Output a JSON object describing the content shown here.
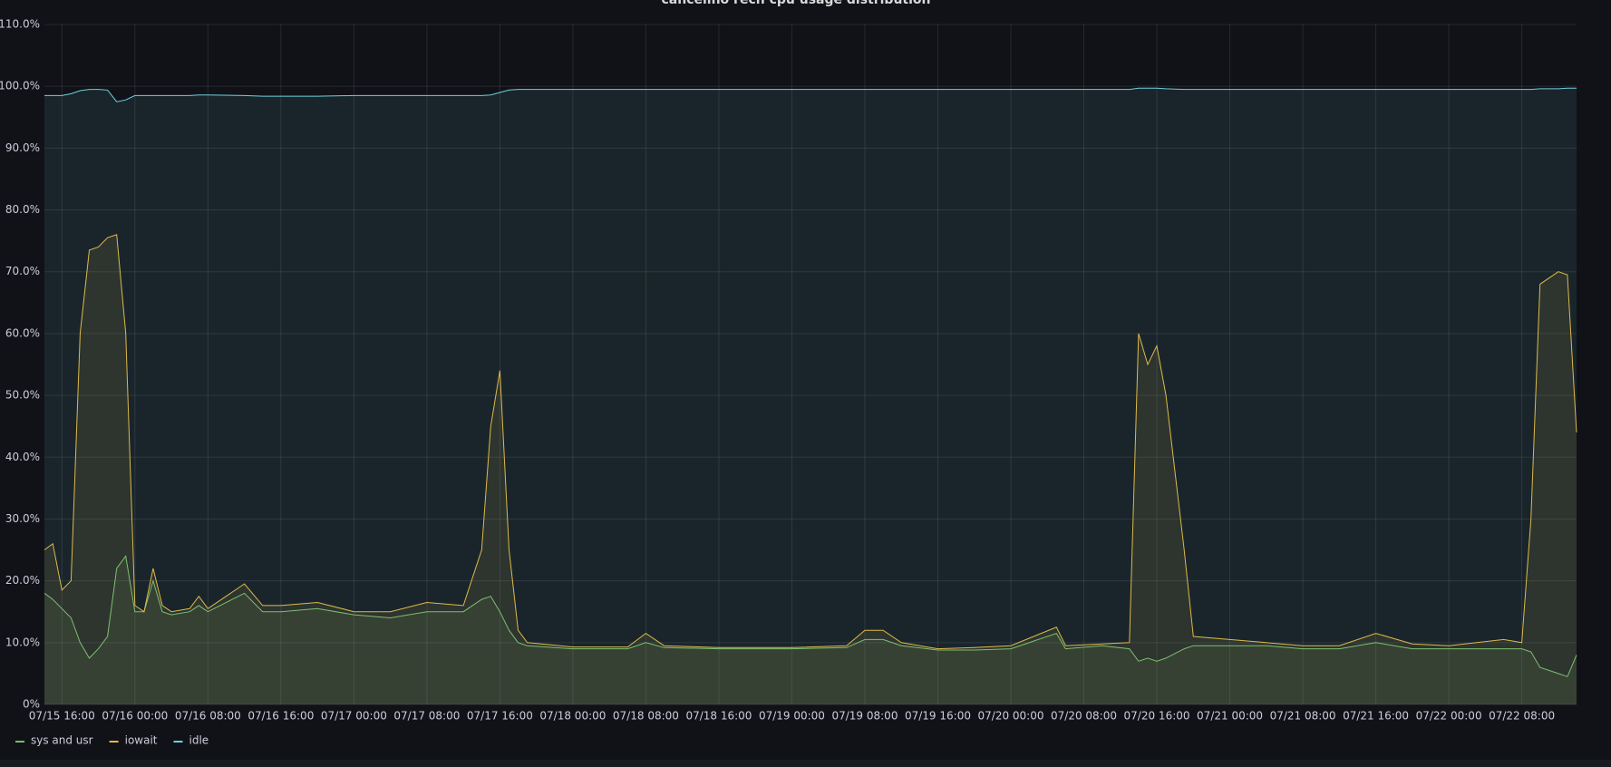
{
  "chart_data": {
    "type": "line",
    "title": "cancelino rech cpu usage distribution",
    "x": [
      "07/15 14:05",
      "07/15 15:00",
      "07/15 16:00",
      "07/15 17:00",
      "07/15 18:00",
      "07/15 19:00",
      "07/15 20:00",
      "07/15 21:00",
      "07/15 22:00",
      "07/15 23:00",
      "07/16 00:00",
      "07/16 01:00",
      "07/16 02:00",
      "07/16 03:00",
      "07/16 04:00",
      "07/16 06:00",
      "07/16 07:00",
      "07/16 08:00",
      "07/16 12:00",
      "07/16 14:00",
      "07/16 16:00",
      "07/16 20:00",
      "07/17 00:00",
      "07/17 04:00",
      "07/17 08:00",
      "07/17 12:00",
      "07/17 14:00",
      "07/17 15:00",
      "07/17 16:00",
      "07/17 17:00",
      "07/17 18:00",
      "07/17 19:00",
      "07/18 00:00",
      "07/18 06:00",
      "07/18 08:00",
      "07/18 10:00",
      "07/18 16:00",
      "07/19 00:00",
      "07/19 06:00",
      "07/19 08:00",
      "07/19 10:00",
      "07/19 12:00",
      "07/19 16:00",
      "07/19 20:00",
      "07/20 00:00",
      "07/20 05:00",
      "07/20 06:00",
      "07/20 10:00",
      "07/20 13:00",
      "07/20 14:00",
      "07/20 15:00",
      "07/20 16:00",
      "07/20 17:00",
      "07/20 19:00",
      "07/20 20:00",
      "07/21 00:00",
      "07/21 04:00",
      "07/21 08:00",
      "07/21 12:00",
      "07/21 16:00",
      "07/21 20:00",
      "07/22 00:00",
      "07/22 06:00",
      "07/22 08:00",
      "07/22 09:00",
      "07/22 10:00",
      "07/22 12:00",
      "07/22 13:00",
      "07/22 14:00"
    ],
    "series": [
      {
        "name": "sys and usr",
        "color": "#73bf69",
        "values": [
          18,
          17,
          15.5,
          14,
          10,
          7.5,
          9,
          11,
          22,
          24,
          15,
          15,
          20,
          15,
          14.5,
          15,
          16,
          15,
          18,
          15,
          15,
          15.5,
          14.5,
          14,
          15,
          15,
          17,
          17.5,
          15,
          12,
          10,
          9.5,
          9,
          9,
          10,
          9.2,
          9,
          9,
          9.2,
          10.5,
          10.5,
          9.5,
          8.8,
          8.8,
          9,
          11.5,
          9,
          9.5,
          9,
          7,
          7.5,
          7,
          7.5,
          9,
          9.5,
          9.5,
          9.5,
          9,
          9,
          10,
          9,
          9,
          9,
          9,
          8.5,
          6,
          5,
          4.5,
          8
        ]
      },
      {
        "name": "iowait",
        "color": "#eab839",
        "values": [
          25,
          26,
          18.5,
          20,
          60,
          73.5,
          74,
          75.5,
          76,
          60,
          16,
          15,
          22,
          16,
          15,
          15.5,
          17.5,
          15.5,
          19.5,
          16,
          16,
          16.5,
          15,
          15,
          16.5,
          16,
          25,
          45,
          54,
          25,
          12,
          10,
          9.3,
          9.3,
          11.5,
          9.5,
          9.2,
          9.2,
          9.5,
          12,
          12,
          10,
          9,
          9.2,
          9.5,
          12.5,
          9.5,
          9.8,
          10,
          60,
          55,
          58,
          50,
          25,
          11,
          10.5,
          10,
          9.5,
          9.5,
          11.5,
          9.8,
          9.5,
          10.5,
          10,
          30,
          68,
          70,
          69.5,
          44
        ]
      },
      {
        "name": "idle",
        "color": "#6ed0e0",
        "values": [
          98.5,
          98.5,
          98.5,
          98.8,
          99.3,
          99.5,
          99.5,
          99.4,
          97.5,
          97.8,
          98.5,
          98.5,
          98.5,
          98.5,
          98.5,
          98.5,
          98.6,
          98.6,
          98.5,
          98.4,
          98.4,
          98.4,
          98.5,
          98.5,
          98.5,
          98.5,
          98.5,
          98.6,
          99.0,
          99.4,
          99.5,
          99.5,
          99.5,
          99.5,
          99.5,
          99.5,
          99.5,
          99.5,
          99.5,
          99.5,
          99.5,
          99.5,
          99.5,
          99.5,
          99.5,
          99.5,
          99.5,
          99.5,
          99.5,
          99.7,
          99.7,
          99.7,
          99.6,
          99.5,
          99.5,
          99.5,
          99.5,
          99.5,
          99.5,
          99.5,
          99.5,
          99.5,
          99.5,
          99.5,
          99.5,
          99.6,
          99.6,
          99.7,
          99.7
        ]
      }
    ],
    "xlim": [
      "07/15 14:05",
      "07/22 14:00"
    ],
    "xticks": [
      "07/15 16:00",
      "07/16 00:00",
      "07/16 08:00",
      "07/16 16:00",
      "07/17 00:00",
      "07/17 08:00",
      "07/17 16:00",
      "07/18 00:00",
      "07/18 08:00",
      "07/18 16:00",
      "07/19 00:00",
      "07/19 08:00",
      "07/19 16:00",
      "07/20 00:00",
      "07/20 08:00",
      "07/20 16:00",
      "07/21 00:00",
      "07/21 08:00",
      "07/21 16:00",
      "07/22 00:00",
      "07/22 08:00"
    ],
    "ylim": [
      0,
      110
    ],
    "yticks": [
      {
        "value": 0,
        "label": "0%"
      },
      {
        "value": 10,
        "label": "10.0%"
      },
      {
        "value": 20,
        "label": "20.0%"
      },
      {
        "value": 30,
        "label": "30.0%"
      },
      {
        "value": 40,
        "label": "40.0%"
      },
      {
        "value": 50,
        "label": "50.0%"
      },
      {
        "value": 60,
        "label": "60.0%"
      },
      {
        "value": 70,
        "label": "70.0%"
      },
      {
        "value": 80,
        "label": "80.0%"
      },
      {
        "value": 90,
        "label": "90.0%"
      },
      {
        "value": 100,
        "label": "100.0%"
      },
      {
        "value": 110,
        "label": "110.0%"
      }
    ],
    "grid": true,
    "legend": "bottom-left"
  }
}
